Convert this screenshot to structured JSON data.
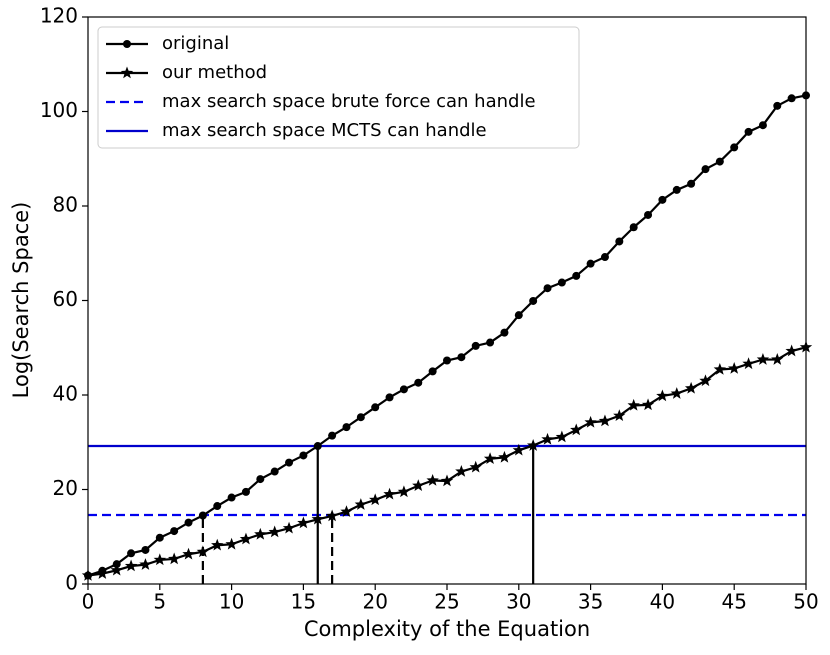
{
  "chart_data": {
    "type": "line",
    "xlabel": "Complexity of the Equation",
    "ylabel": "Log(Search Space)",
    "x": [
      0,
      1,
      2,
      3,
      4,
      5,
      6,
      7,
      8,
      9,
      10,
      11,
      12,
      13,
      14,
      15,
      16,
      17,
      18,
      19,
      20,
      21,
      22,
      23,
      24,
      25,
      26,
      27,
      28,
      29,
      30,
      31,
      32,
      33,
      34,
      35,
      36,
      37,
      38,
      39,
      40,
      41,
      42,
      43,
      44,
      45,
      46,
      47,
      48,
      49,
      50
    ],
    "series": [
      {
        "name": "original",
        "color": "#000000",
        "marker": "circle",
        "values": [
          1.8,
          2.8,
          4.2,
          6.5,
          7.2,
          9.8,
          11.2,
          13,
          14.5,
          16.5,
          18.3,
          19.5,
          22.2,
          23.8,
          25.7,
          27.2,
          29.2,
          31.4,
          33.2,
          35.3,
          37.4,
          39.5,
          41.2,
          42.6,
          45,
          47.3,
          48,
          50.4,
          51.1,
          53.2,
          56.9,
          59.9,
          62.6,
          63.8,
          65.2,
          67.8,
          69.2,
          72.5,
          75.5,
          78.1,
          81.3,
          83.4,
          84.7,
          87.8,
          89.4,
          92.4,
          95.7,
          97.1,
          101.2,
          102.8,
          103.4
        ]
      },
      {
        "name": "our method",
        "color": "#000000",
        "marker": "star",
        "values": [
          1.8,
          2.2,
          2.9,
          3.8,
          4.1,
          5.1,
          5.3,
          6.3,
          6.8,
          8.2,
          8.4,
          9.5,
          10.5,
          11,
          11.8,
          12.9,
          13.7,
          14.4,
          15.3,
          16.8,
          17.8,
          19,
          19.5,
          20.8,
          21.9,
          21.8,
          23.8,
          24.7,
          26.5,
          26.8,
          28.3,
          29.3,
          30.6,
          31.1,
          32.6,
          34.2,
          34.5,
          35.6,
          37.8,
          37.9,
          39.8,
          40.3,
          41.4,
          43,
          45.4,
          45.6,
          46.6,
          47.5,
          47.5,
          49.3,
          50.1
        ]
      }
    ],
    "hlines": [
      {
        "name": "max search space brute force can handle",
        "color": "#0000ee",
        "style": "dashed",
        "value": 14.6
      },
      {
        "name": "max search space MCTS can handle",
        "color": "#0000cc",
        "style": "solid",
        "value": 29.2
      }
    ],
    "vlines": [
      {
        "x": 8,
        "y": 14.6,
        "style": "dashed",
        "color": "#000000"
      },
      {
        "x": 17,
        "y": 14.6,
        "style": "dashed",
        "color": "#000000"
      },
      {
        "x": 16,
        "y": 29.2,
        "style": "solid",
        "color": "#000000"
      },
      {
        "x": 31,
        "y": 29.2,
        "style": "solid",
        "color": "#000000"
      }
    ],
    "xlim": [
      0,
      50
    ],
    "xticks": [
      0,
      5,
      10,
      15,
      20,
      25,
      30,
      35,
      40,
      45,
      50
    ],
    "ylim": [
      0,
      120
    ],
    "yticks": [
      0,
      20,
      40,
      60,
      80,
      100,
      120
    ],
    "legend": "upper left",
    "grid": false
  }
}
